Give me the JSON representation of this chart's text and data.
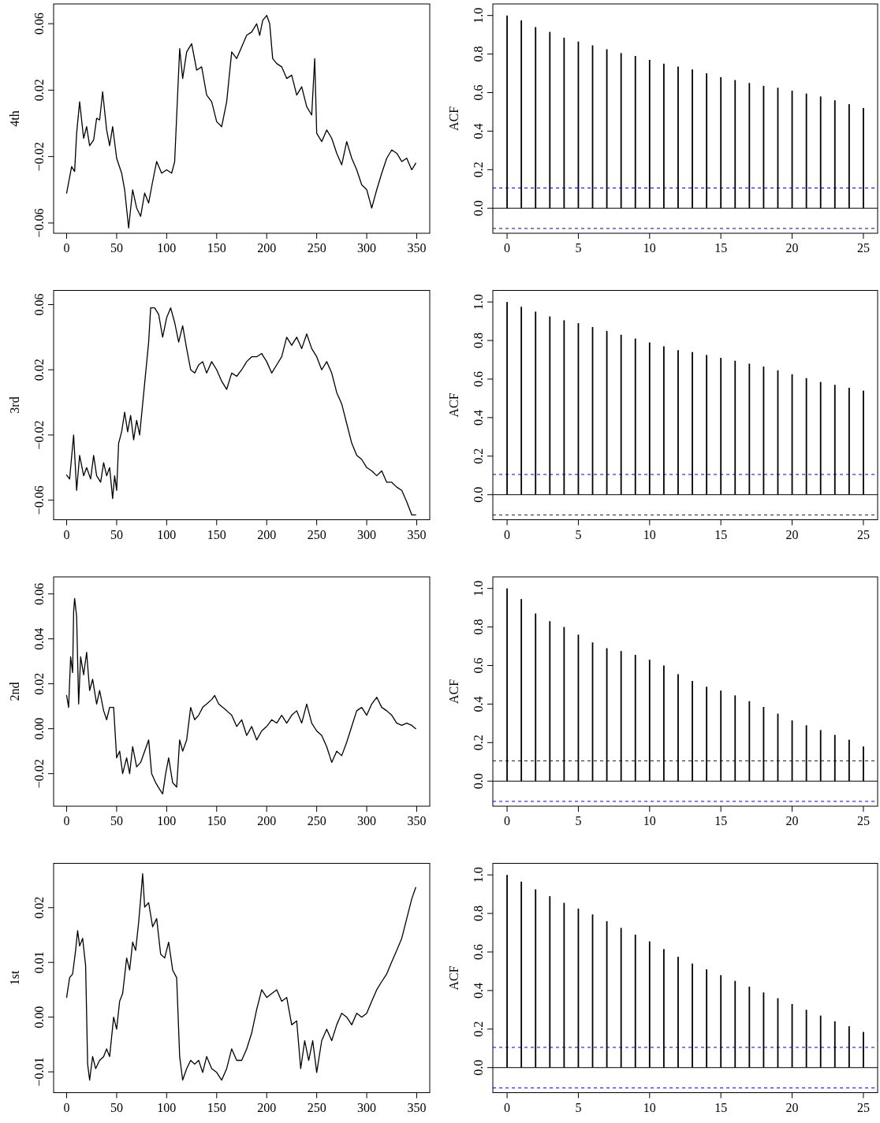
{
  "chart_data": [
    {
      "type": "line",
      "ylabel": "4th",
      "color": "#000000",
      "xlim": [
        -13,
        363
      ],
      "ylim": [
        -0.0662,
        0.0719
      ],
      "xticks": [
        0,
        50,
        100,
        150,
        200,
        250,
        300,
        350
      ],
      "yticks": [
        {
          "value": -0.06,
          "label": "−0.06"
        },
        {
          "value": -0.02,
          "label": "−0.02"
        },
        0.02,
        0.06
      ],
      "x": [
        0,
        5,
        8,
        10,
        13,
        17,
        20,
        23,
        27,
        30,
        33,
        36,
        40,
        43,
        46,
        50,
        55,
        58,
        62,
        66,
        70,
        74,
        78,
        82,
        86,
        90,
        95,
        100,
        105,
        108,
        113,
        116,
        120,
        125,
        130,
        135,
        140,
        145,
        150,
        155,
        160,
        165,
        170,
        175,
        180,
        185,
        190,
        193,
        196,
        200,
        203,
        206,
        210,
        215,
        220,
        225,
        230,
        235,
        240,
        245,
        248,
        250,
        255,
        260,
        265,
        270,
        275,
        280,
        285,
        290,
        295,
        300,
        305,
        310,
        315,
        320,
        325,
        330,
        335,
        340,
        345,
        349
      ],
      "values": [
        -0.042,
        -0.026,
        -0.029,
        -0.006,
        0.013,
        -0.009,
        -0.002,
        -0.0135,
        -0.01,
        0.003,
        0.002,
        0.019,
        -0.004,
        -0.0135,
        -0.002,
        -0.021,
        -0.03,
        -0.04,
        -0.063,
        -0.04,
        -0.051,
        -0.056,
        -0.042,
        -0.048,
        -0.035,
        -0.023,
        -0.03,
        -0.028,
        -0.03,
        -0.023,
        0.045,
        0.027,
        0.043,
        0.048,
        0.032,
        0.034,
        0.017,
        0.013,
        0.001,
        -0.002,
        0.013,
        0.043,
        0.039,
        0.046,
        0.053,
        0.055,
        0.06,
        0.053,
        0.062,
        0.065,
        0.06,
        0.039,
        0.036,
        0.034,
        0.027,
        0.029,
        0.017,
        0.022,
        0.01,
        0.005,
        0.039,
        -0.006,
        -0.011,
        -0.004,
        -0.009,
        -0.018,
        -0.025,
        -0.011,
        -0.021,
        -0.028,
        -0.037,
        -0.04,
        -0.051,
        -0.04,
        -0.03,
        -0.021,
        -0.016,
        -0.018,
        -0.023,
        -0.021,
        -0.028,
        -0.024
      ]
    },
    {
      "type": "bar",
      "ylabel": "ACF",
      "color": "#000000",
      "xlim": [
        -1,
        26
      ],
      "ylim": [
        -0.13,
        1.06
      ],
      "xticks": [
        0,
        5,
        10,
        15,
        20,
        25
      ],
      "yticks": [
        {
          "value": 0,
          "label": "0.0"
        },
        {
          "value": 0.2,
          "label": "0.2"
        },
        {
          "value": 0.4,
          "label": "0.4"
        },
        {
          "value": 0.6,
          "label": "0.6"
        },
        {
          "value": 0.8,
          "label": "0.8"
        },
        {
          "value": 1,
          "label": "1.0"
        }
      ],
      "x": [
        0,
        1,
        2,
        3,
        4,
        5,
        6,
        7,
        8,
        9,
        10,
        11,
        12,
        13,
        14,
        15,
        16,
        17,
        18,
        19,
        20,
        21,
        22,
        23,
        24,
        25
      ],
      "values": [
        1,
        0.975,
        0.94,
        0.915,
        0.885,
        0.865,
        0.845,
        0.825,
        0.805,
        0.79,
        0.77,
        0.75,
        0.735,
        0.72,
        0.7,
        0.68,
        0.665,
        0.65,
        0.635,
        0.625,
        0.61,
        0.595,
        0.58,
        0.56,
        0.54,
        0.52
      ],
      "ref_lines": [
        {
          "axis": "y",
          "value": 0,
          "color": "#000000",
          "line_style": "solid"
        },
        {
          "axis": "y",
          "value": 0.105,
          "color": "#0000ff",
          "line_style": "dashed"
        },
        {
          "axis": "y",
          "value": -0.105,
          "color": "#0000ff",
          "line_style": "dashed"
        }
      ]
    },
    {
      "type": "line",
      "ylabel": "3rd",
      "color": "#000000",
      "xlim": [
        -13,
        363
      ],
      "ylim": [
        -0.072,
        0.0687
      ],
      "xticks": [
        0,
        50,
        100,
        150,
        200,
        250,
        300,
        350
      ],
      "yticks": [
        {
          "value": -0.06,
          "label": "−0.06"
        },
        {
          "value": -0.02,
          "label": "−0.02"
        },
        0.02,
        0.06
      ],
      "x": [
        0,
        3,
        7,
        10,
        13,
        17,
        20,
        24,
        27,
        30,
        34,
        37,
        40,
        43,
        46,
        48,
        50,
        52,
        55,
        58,
        61,
        64,
        67,
        70,
        73,
        76,
        79,
        82,
        84,
        88,
        92,
        96,
        100,
        104,
        108,
        112,
        116,
        120,
        124,
        128,
        132,
        136,
        140,
        145,
        150,
        155,
        160,
        165,
        170,
        175,
        180,
        185,
        190,
        195,
        200,
        205,
        210,
        215,
        220,
        225,
        230,
        235,
        240,
        245,
        250,
        255,
        260,
        265,
        270,
        275,
        280,
        285,
        290,
        295,
        300,
        305,
        310,
        315,
        320,
        325,
        330,
        335,
        340,
        345,
        349
      ],
      "values": [
        -0.0446,
        -0.047,
        -0.02,
        -0.054,
        -0.0325,
        -0.045,
        -0.04,
        -0.047,
        -0.0325,
        -0.045,
        -0.049,
        -0.037,
        -0.045,
        -0.04,
        -0.059,
        -0.045,
        -0.054,
        -0.025,
        -0.018,
        -0.006,
        -0.018,
        -0.008,
        -0.023,
        -0.011,
        -0.02,
        -0.001,
        0.018,
        0.037,
        0.058,
        0.058,
        0.054,
        0.04,
        0.052,
        0.058,
        0.049,
        0.037,
        0.047,
        0.033,
        0.02,
        0.018,
        0.023,
        0.025,
        0.018,
        0.025,
        0.02,
        0.013,
        0.008,
        0.018,
        0.016,
        0.02,
        0.025,
        0.028,
        0.028,
        0.03,
        0.025,
        0.018,
        0.023,
        0.028,
        0.04,
        0.035,
        0.04,
        0.033,
        0.042,
        0.033,
        0.028,
        0.02,
        0.025,
        0.018,
        0.006,
        -0.001,
        -0.013,
        -0.025,
        -0.0325,
        -0.035,
        -0.04,
        -0.042,
        -0.045,
        -0.042,
        -0.049,
        -0.049,
        -0.052,
        -0.054,
        -0.061,
        -0.069,
        -0.069
      ]
    },
    {
      "type": "bar",
      "ylabel": "ACF",
      "color": "#000000",
      "xlim": [
        -1,
        26
      ],
      "ylim": [
        -0.13,
        1.06
      ],
      "xticks": [
        0,
        5,
        10,
        15,
        20,
        25
      ],
      "yticks": [
        {
          "value": 0,
          "label": "0.0"
        },
        {
          "value": 0.2,
          "label": "0.2"
        },
        {
          "value": 0.4,
          "label": "0.4"
        },
        {
          "value": 0.6,
          "label": "0.6"
        },
        {
          "value": 0.8,
          "label": "0.8"
        },
        {
          "value": 1,
          "label": "1.0"
        }
      ],
      "x": [
        0,
        1,
        2,
        3,
        4,
        5,
        6,
        7,
        8,
        9,
        10,
        11,
        12,
        13,
        14,
        15,
        16,
        17,
        18,
        19,
        20,
        21,
        22,
        23,
        24,
        25
      ],
      "values": [
        1,
        0.975,
        0.95,
        0.925,
        0.905,
        0.89,
        0.87,
        0.85,
        0.83,
        0.81,
        0.79,
        0.77,
        0.75,
        0.74,
        0.725,
        0.71,
        0.695,
        0.68,
        0.665,
        0.645,
        0.625,
        0.605,
        0.585,
        0.57,
        0.555,
        0.54
      ],
      "ref_lines": [
        {
          "axis": "y",
          "value": 0,
          "color": "#000000",
          "line_style": "solid"
        },
        {
          "axis": "y",
          "value": 0.105,
          "color": "#0000ff",
          "line_style": "dashed"
        },
        {
          "axis": "y",
          "value": -0.105,
          "color": "#0000ff",
          "line_style": "dashed"
        }
      ]
    },
    {
      "type": "line",
      "ylabel": "2nd",
      "color": "#000000",
      "xlim": [
        -13,
        363
      ],
      "ylim": [
        -0.0345,
        0.0676
      ],
      "xticks": [
        0,
        50,
        100,
        150,
        200,
        250,
        300,
        350
      ],
      "yticks": [
        {
          "value": -0.02,
          "label": "−0.02"
        },
        {
          "value": 0,
          "label": "0.00"
        },
        0.02,
        0.04,
        0.06
      ],
      "x": [
        0,
        2,
        4,
        6,
        7,
        8,
        10,
        12,
        14,
        17,
        20,
        23,
        26,
        30,
        33,
        37,
        40,
        43,
        47,
        50,
        53,
        56,
        60,
        63,
        66,
        70,
        74,
        78,
        82,
        85,
        89,
        93,
        96,
        99,
        102,
        106,
        110,
        113,
        116,
        120,
        124,
        128,
        132,
        136,
        140,
        145,
        148,
        152,
        156,
        160,
        165,
        170,
        175,
        180,
        185,
        190,
        195,
        200,
        205,
        210,
        215,
        220,
        225,
        230,
        235,
        240,
        245,
        250,
        255,
        260,
        265,
        270,
        275,
        280,
        285,
        290,
        295,
        300,
        305,
        310,
        315,
        320,
        325,
        330,
        335,
        340,
        345,
        349
      ],
      "values": [
        0.0148,
        0.0095,
        0.032,
        0.025,
        0.052,
        0.058,
        0.05,
        0.011,
        0.032,
        0.024,
        0.034,
        0.017,
        0.022,
        0.011,
        0.017,
        0.008,
        0.004,
        0.0095,
        0.0095,
        -0.013,
        -0.01,
        -0.02,
        -0.013,
        -0.02,
        -0.008,
        -0.017,
        -0.015,
        -0.01,
        -0.005,
        -0.02,
        -0.024,
        -0.027,
        -0.029,
        -0.02,
        -0.013,
        -0.024,
        -0.026,
        -0.005,
        -0.01,
        -0.005,
        0.0095,
        0.004,
        0.006,
        0.0095,
        0.011,
        0.013,
        0.0148,
        0.011,
        0.0095,
        0.008,
        0.006,
        0.001,
        0.004,
        -0.003,
        0.001,
        -0.005,
        -0.001,
        0.001,
        0.004,
        0.0025,
        0.006,
        0.0025,
        0.006,
        0.008,
        0.0025,
        0.011,
        0.0025,
        -0.001,
        -0.003,
        -0.008,
        -0.015,
        -0.01,
        -0.012,
        -0.006,
        0.001,
        0.008,
        0.0095,
        0.006,
        0.011,
        0.014,
        0.0095,
        0.008,
        0.006,
        0.0025,
        0.0015,
        0.0025,
        0.0015,
        0.0
      ]
    },
    {
      "type": "bar",
      "ylabel": "ACF",
      "color": "#000000",
      "xlim": [
        -1,
        26
      ],
      "ylim": [
        -0.13,
        1.06
      ],
      "xticks": [
        0,
        5,
        10,
        15,
        20,
        25
      ],
      "yticks": [
        {
          "value": 0,
          "label": "0.0"
        },
        {
          "value": 0.2,
          "label": "0.2"
        },
        {
          "value": 0.4,
          "label": "0.4"
        },
        {
          "value": 0.6,
          "label": "0.6"
        },
        {
          "value": 0.8,
          "label": "0.8"
        },
        {
          "value": 1,
          "label": "1.0"
        }
      ],
      "x": [
        0,
        1,
        2,
        3,
        4,
        5,
        6,
        7,
        8,
        9,
        10,
        11,
        12,
        13,
        14,
        15,
        16,
        17,
        18,
        19,
        20,
        21,
        22,
        23,
        24,
        25
      ],
      "values": [
        1,
        0.945,
        0.87,
        0.83,
        0.8,
        0.76,
        0.72,
        0.69,
        0.675,
        0.655,
        0.63,
        0.6,
        0.555,
        0.52,
        0.49,
        0.47,
        0.445,
        0.415,
        0.385,
        0.35,
        0.315,
        0.29,
        0.265,
        0.24,
        0.215,
        0.18
      ],
      "ref_lines": [
        {
          "axis": "y",
          "value": 0,
          "color": "#000000",
          "line_style": "solid"
        },
        {
          "axis": "y",
          "value": 0.105,
          "color": "#0000ff",
          "line_style": "dashed"
        },
        {
          "axis": "y",
          "value": -0.105,
          "color": "#0000ff",
          "line_style": "dashed"
        }
      ]
    },
    {
      "type": "line",
      "ylabel": "1st",
      "color": "#000000",
      "xlim": [
        -13,
        363
      ],
      "ylim": [
        -0.0138,
        0.0281
      ],
      "xticks": [
        0,
        50,
        100,
        150,
        200,
        250,
        300,
        350
      ],
      "yticks": [
        {
          "value": -0.01,
          "label": "−0.01"
        },
        {
          "value": 0,
          "label": "0.00"
        },
        {
          "value": 0.01,
          "label": "0.01"
        },
        {
          "value": 0.02,
          "label": "0.02"
        }
      ],
      "x": [
        0,
        3,
        6,
        9,
        11,
        13,
        16,
        19,
        21,
        23,
        26,
        29,
        33,
        37,
        40,
        43,
        47,
        50,
        53,
        56,
        60,
        63,
        66,
        69,
        72,
        74,
        76,
        78,
        82,
        86,
        90,
        94,
        98,
        102,
        106,
        110,
        113,
        116,
        120,
        124,
        128,
        132,
        136,
        140,
        145,
        150,
        155,
        160,
        165,
        170,
        175,
        180,
        185,
        190,
        195,
        200,
        205,
        210,
        215,
        220,
        225,
        230,
        234,
        238,
        242,
        246,
        250,
        255,
        260,
        265,
        270,
        275,
        280,
        285,
        290,
        295,
        300,
        305,
        310,
        315,
        320,
        325,
        330,
        335,
        340,
        345,
        349
      ],
      "values": [
        0.0036,
        0.0072,
        0.0079,
        0.0122,
        0.0158,
        0.013,
        0.0144,
        0.0094,
        -0.0086,
        -0.0115,
        -0.0072,
        -0.0094,
        -0.0079,
        -0.0072,
        -0.0058,
        -0.0072,
        0,
        -0.0022,
        0.0029,
        0.0043,
        0.0108,
        0.0086,
        0.0137,
        0.0122,
        0.0173,
        0.0216,
        0.0262,
        0.0201,
        0.0209,
        0.0165,
        0.018,
        0.0115,
        0.0108,
        0.0137,
        0.0086,
        0.0072,
        -0.0072,
        -0.0115,
        -0.0094,
        -0.0079,
        -0.0086,
        -0.0079,
        -0.0101,
        -0.0072,
        -0.0094,
        -0.0101,
        -0.0115,
        -0.0094,
        -0.0058,
        -0.0079,
        -0.0079,
        -0.0058,
        -0.0029,
        0.0014,
        0.005,
        0.0036,
        0.0043,
        0.005,
        0.0029,
        0.0036,
        -0.0014,
        -0.0007,
        -0.0094,
        -0.0043,
        -0.0079,
        -0.0043,
        -0.0101,
        -0.0043,
        -0.0022,
        -0.0043,
        -0.0014,
        0.0007,
        0,
        -0.0014,
        0.0007,
        0,
        0.0007,
        0.0029,
        0.005,
        0.0065,
        0.0079,
        0.0101,
        0.0122,
        0.0144,
        0.018,
        0.0216,
        0.0237
      ]
    },
    {
      "type": "bar",
      "ylabel": "ACF",
      "color": "#000000",
      "xlim": [
        -1,
        26
      ],
      "ylim": [
        -0.13,
        1.06
      ],
      "xticks": [
        0,
        5,
        10,
        15,
        20,
        25
      ],
      "yticks": [
        {
          "value": 0,
          "label": "0.0"
        },
        {
          "value": 0.2,
          "label": "0.2"
        },
        {
          "value": 0.4,
          "label": "0.4"
        },
        {
          "value": 0.6,
          "label": "0.6"
        },
        {
          "value": 0.8,
          "label": "0.8"
        },
        {
          "value": 1,
          "label": "1.0"
        }
      ],
      "x": [
        0,
        1,
        2,
        3,
        4,
        5,
        6,
        7,
        8,
        9,
        10,
        11,
        12,
        13,
        14,
        15,
        16,
        17,
        18,
        19,
        20,
        21,
        22,
        23,
        24,
        25
      ],
      "values": [
        1,
        0.965,
        0.925,
        0.89,
        0.855,
        0.825,
        0.795,
        0.76,
        0.725,
        0.69,
        0.655,
        0.615,
        0.575,
        0.54,
        0.51,
        0.48,
        0.45,
        0.42,
        0.39,
        0.36,
        0.33,
        0.3,
        0.27,
        0.24,
        0.215,
        0.185
      ],
      "ref_lines": [
        {
          "axis": "y",
          "value": 0,
          "color": "#000000",
          "line_style": "solid"
        },
        {
          "axis": "y",
          "value": 0.105,
          "color": "#0000ff",
          "line_style": "dashed"
        },
        {
          "axis": "y",
          "value": -0.105,
          "color": "#0000ff",
          "line_style": "dashed"
        }
      ]
    }
  ]
}
